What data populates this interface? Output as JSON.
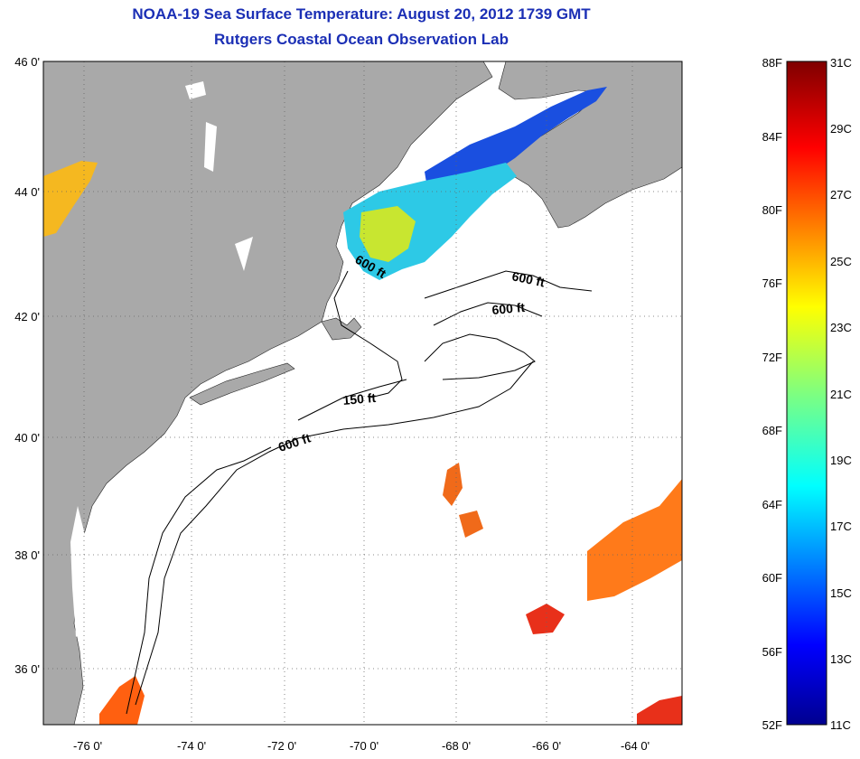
{
  "title": {
    "line1": "NOAA-19 Sea Surface Temperature:  August 20, 2012 1739 GMT",
    "line2": "Rutgers Coastal Ocean Observation Lab"
  },
  "map": {
    "lat_labels": [
      "46 0'",
      "44 0'",
      "42 0'",
      "40 0'",
      "38 0'",
      "36 0'"
    ],
    "lon_labels": [
      "-76 0'",
      "-74 0'",
      "-72 0'",
      "-70 0'",
      "-68 0'",
      "-66 0'",
      "-64 0'"
    ],
    "isobath_labels": [
      "600 ft",
      "600 ft",
      "600 ft",
      "150 ft",
      "600 ft"
    ],
    "colors": {
      "land": "#a9a9a9",
      "ocean": "#ffffff",
      "contour": "#000000"
    }
  },
  "colorbar": {
    "fahrenheit": [
      "88F",
      "84F",
      "80F",
      "76F",
      "72F",
      "68F",
      "64F",
      "60F",
      "56F",
      "52F"
    ],
    "celsius": [
      "31C",
      "29C",
      "27C",
      "25C",
      "23C",
      "21C",
      "19C",
      "17C",
      "15C",
      "13C",
      "11C"
    ]
  }
}
